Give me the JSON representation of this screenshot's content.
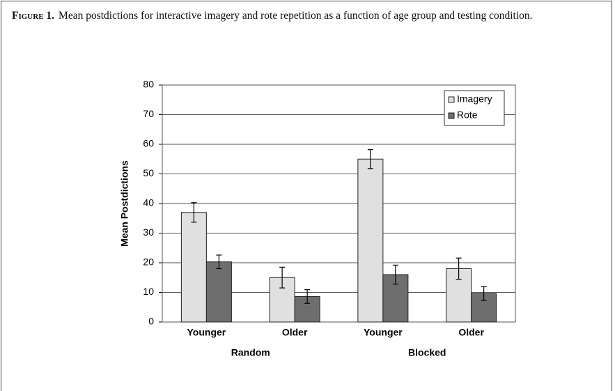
{
  "figure": {
    "label": "Figure 1.",
    "caption": "Mean postdictions for interactive imagery and rote repetition as a function of age group and testing condition."
  },
  "chart_data": {
    "type": "bar",
    "ylabel": "Mean Postdictions",
    "categories": [
      "Younger",
      "Older",
      "Younger",
      "Older"
    ],
    "groups": [
      "Random",
      "Blocked"
    ],
    "series": [
      {
        "name": "Imagery",
        "color": "#e0e0e0",
        "values": [
          37,
          15,
          55,
          18
        ],
        "errors": [
          3.3,
          3.5,
          3.2,
          3.6
        ]
      },
      {
        "name": "Rote",
        "color": "#6e6e6e",
        "values": [
          20.3,
          8.6,
          16,
          9.6
        ],
        "errors": [
          2.3,
          2.3,
          3.2,
          2.3
        ]
      }
    ],
    "ylim": [
      0,
      80
    ],
    "yticks": [
      0,
      10,
      20,
      30,
      40,
      50,
      60,
      70,
      80
    ],
    "grid": true,
    "legend": "upper right"
  }
}
